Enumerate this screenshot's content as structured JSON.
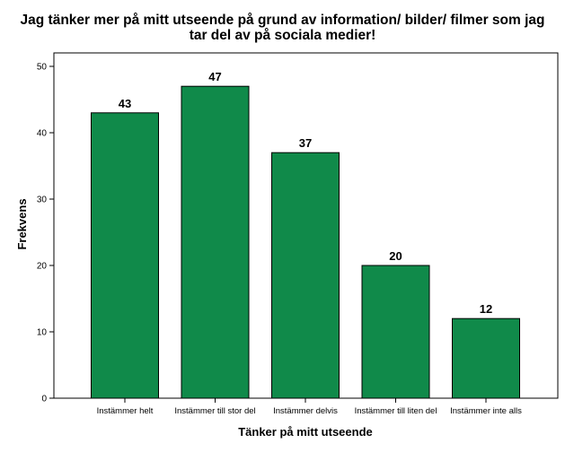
{
  "chart_data": {
    "type": "bar",
    "title_lines": [
      "Jag tänker mer på mitt utseende på grund av information/ bilder/ filmer som jag",
      "tar del av på sociala medier!"
    ],
    "xlabel": "Tänker på mitt utseende",
    "ylabel": "Frekvens",
    "categories": [
      "Instämmer helt",
      "Instämmer till stor del",
      "Instämmer delvis",
      "Instämmer till liten del",
      "Instämmer inte alls"
    ],
    "values": [
      43,
      47,
      37,
      20,
      12
    ],
    "data_labels": [
      "43",
      "47",
      "37",
      "20",
      "12"
    ],
    "ylim": [
      0,
      50
    ],
    "yticks": [
      0,
      10,
      20,
      30,
      40,
      50
    ],
    "grid": false,
    "legend": "none",
    "colors": {
      "bar_fill": "#108a4a",
      "bar_stroke": "#000000",
      "plot_border": "#000000"
    }
  }
}
